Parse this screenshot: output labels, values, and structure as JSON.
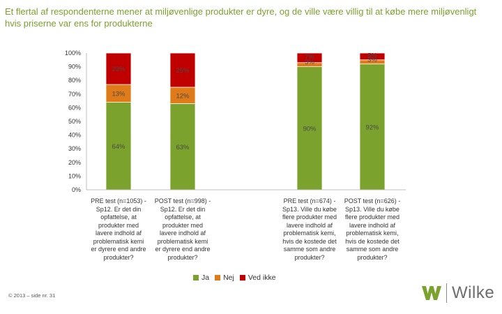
{
  "title": "Et flertal af respondenterne mener at miljøvenlige produkter er dyre, og de ville være villig til at købe mere miljøvenligt hvis priserne var ens for produkterne",
  "colors": {
    "ja": "#7aa22d",
    "nej": "#e07b1a",
    "ved_ikke": "#c00000",
    "title": "#7aa22d"
  },
  "chart_data": {
    "type": "bar",
    "stacked": true,
    "categories": [
      "PRE test (n=1053) - Sp12. Er det din opfattelse, at produkter med lavere indhold af problematisk kemi er dyrere end andre produkter?",
      "POST test (n=998) - Sp12. Er det din opfattelse, at produkter med lavere indhold af problematisk kemi er dyrere end andre produkter?",
      "PRE test (n=674) - Sp13. Ville du købe flere produkter med lavere indhold af problematisk kemi, hvis de kostede det samme som andre produkter?",
      "POST test (n=626) - Sp13. Ville du købe flere produkter med lavere indhold af problematisk kemi, hvis de kostede det samme som andre produkter?"
    ],
    "series": [
      {
        "name": "Ja",
        "values": [
          64,
          63,
          90,
          92
        ],
        "labels": [
          "64%",
          "63%",
          "90%",
          "92%"
        ]
      },
      {
        "name": "Nej",
        "values": [
          13,
          12,
          3,
          3
        ],
        "labels": [
          "13%",
          "12%",
          "3%",
          "3%"
        ]
      },
      {
        "name": "Ved ikke",
        "values": [
          23,
          25,
          7,
          5
        ],
        "labels": [
          "23%",
          "25%",
          "7%",
          "5%"
        ]
      }
    ],
    "ylim": [
      0,
      100
    ],
    "yticks": [
      "0%",
      "10%",
      "20%",
      "30%",
      "40%",
      "50%",
      "60%",
      "70%",
      "80%",
      "90%",
      "100%"
    ],
    "legend_position": "bottom"
  },
  "category_lines": [
    [
      "PRE test (n=1053) -",
      "Sp12. Er det din",
      "opfattelse, at",
      "produkter med",
      "lavere indhold af",
      "problematisk kemi",
      "er dyrere end andre",
      "produkter?"
    ],
    [
      "POST test (n=998) -",
      "Sp12. Er det din",
      "opfattelse, at",
      "produkter med",
      "lavere indhold af",
      "problematisk kemi",
      "er dyrere end andre",
      "produkter?"
    ],
    [
      "PRE test (n=674) -",
      "Sp13. Ville du købe",
      "flere produkter med",
      "lavere indhold af",
      "problematisk kemi,",
      "hvis de kostede det",
      "samme som andre",
      "produkter?"
    ],
    [
      "POST test (n=626) -",
      "Sp13. Ville du købe",
      "flere produkter med",
      "lavere indhold af",
      "problematisk kemi,",
      "hvis de kostede det",
      "samme som andre",
      "produkter?"
    ]
  ],
  "legend": {
    "ja": "Ja",
    "nej": "Nej",
    "ved_ikke": "Ved ikke"
  },
  "footer": "© 2013 – side nr. 31",
  "logo": {
    "text": "Wilke",
    "icon": "wilke-w-icon"
  }
}
